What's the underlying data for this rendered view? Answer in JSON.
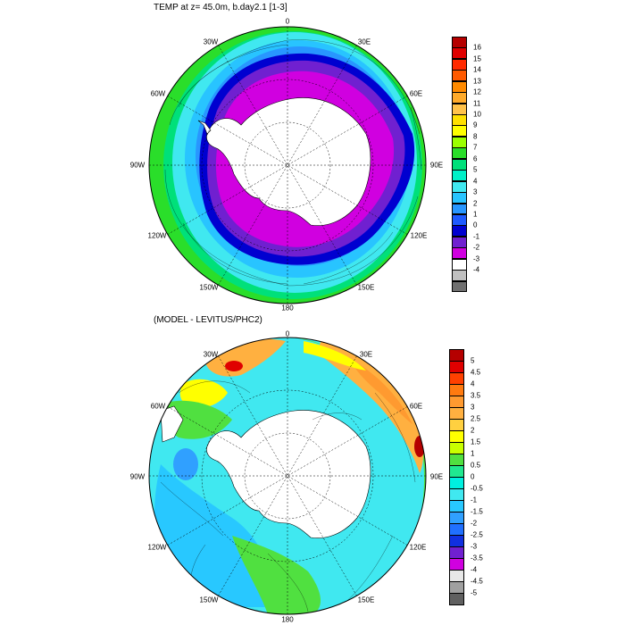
{
  "top_panel": {
    "title": "TEMP at z=  45.0m, b.day2.1 [1-3]",
    "lon_labels": {
      "0": "0",
      "30E": "30E",
      "60E": "60E",
      "90E": "90E",
      "120E": "120E",
      "150E": "150E",
      "180": "180",
      "150W": "150W",
      "120W": "120W",
      "90W": "90W",
      "60W": "60W",
      "30W": "30W"
    },
    "colorbar": {
      "ticks": [
        "16",
        "15",
        "14",
        "13",
        "12",
        "11",
        "10",
        "9",
        "8",
        "7",
        "6",
        "5",
        "4",
        "3",
        "2",
        "1",
        "0",
        "-1",
        "-2",
        "-3",
        "-4"
      ],
      "colors": [
        "#b50000",
        "#e00000",
        "#ff2a00",
        "#ff5a00",
        "#ff8a00",
        "#ffaa2a",
        "#ffc24a",
        "#ffe000",
        "#ffff00",
        "#9bff00",
        "#2ade2a",
        "#00e07a",
        "#00f0c8",
        "#40e8f0",
        "#28c4ff",
        "#2896ff",
        "#1e5aff",
        "#0000d0",
        "#7020d0",
        "#d000e0",
        "#ffffff",
        "#c0c0c0",
        "#707070"
      ]
    }
  },
  "bottom_panel": {
    "title": "(MODEL - LEVITUS/PHC2)",
    "lon_labels": {
      "0": "0",
      "30E": "30E",
      "60E": "60E",
      "90E": "90E",
      "120E": "120E",
      "150E": "150E",
      "180": "180",
      "150W": "150W",
      "120W": "120W",
      "90W": "90W",
      "60W": "60W",
      "30W": "30W"
    },
    "colorbar": {
      "ticks": [
        "5",
        "4.5",
        "4",
        "3.5",
        "3",
        "2.5",
        "2",
        "1.5",
        "1",
        "0.5",
        "0",
        "-0.5",
        "-1",
        "-1.5",
        "-2",
        "-2.5",
        "-3",
        "-3.5",
        "-4",
        "-4.5",
        "-5"
      ],
      "colors": [
        "#b50000",
        "#e00000",
        "#ff4000",
        "#ff7a10",
        "#ff9a30",
        "#ffb040",
        "#ffd040",
        "#ffff00",
        "#c8ff00",
        "#50e040",
        "#20e890",
        "#00f0e0",
        "#40e8f0",
        "#28c8ff",
        "#30a0ff",
        "#2070ff",
        "#1030e0",
        "#7020d0",
        "#d000e0",
        "#e8e8e8",
        "#a0a0a0",
        "#606060"
      ]
    }
  },
  "colors": {
    "magenta": "#d000e0",
    "purple": "#7020d0",
    "navy": "#1e1ee0",
    "blue": "#2896ff",
    "sky": "#28c4ff",
    "cyan": "#40e8f0",
    "aqua": "#00f0c8",
    "green": "#2ade2a",
    "lime": "#9bff00",
    "orange": "#ff9a30",
    "red": "#e00000",
    "land": "#ffffff"
  }
}
